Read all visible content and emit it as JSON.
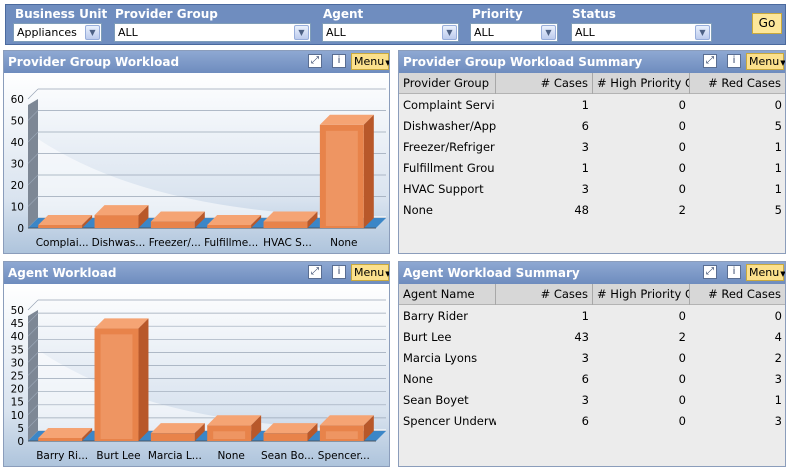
{
  "filters": {
    "business_unit": {
      "label": "Business Unit",
      "value": "Appliances"
    },
    "provider_group": {
      "label": "Provider Group",
      "value": "ALL"
    },
    "agent": {
      "label": "Agent",
      "value": "ALL"
    },
    "priority": {
      "label": "Priority",
      "value": "ALL"
    },
    "status": {
      "label": "Status",
      "value": "ALL"
    },
    "go_label": "Go"
  },
  "menu_label": "Menu",
  "icons": [
    "expand-icon",
    "info-icon"
  ],
  "colors": {
    "header": "#6f8dbf",
    "bar": "#e8834a",
    "menu": "#fbe08c",
    "go": "#fde79a"
  },
  "provider_chart": {
    "title": "Provider Group Workload",
    "chart_data": {
      "type": "bar",
      "categories": [
        "Complai...",
        "Dishwas...",
        "Freezer/...",
        "Fulfillme...",
        "HVAC S...",
        "None"
      ],
      "values": [
        1,
        6,
        3,
        1,
        3,
        48
      ],
      "ylim": [
        0,
        60
      ],
      "yticks": [
        0,
        10,
        20,
        30,
        40,
        50,
        60
      ],
      "grid": true
    }
  },
  "provider_table": {
    "title": "Provider Group Workload Summary",
    "columns": [
      "Provider Group",
      "# Cases",
      "# High Priority C",
      "# Red Cases"
    ],
    "rows": [
      [
        "Complaint Servi",
        "1",
        "0",
        "0"
      ],
      [
        "Dishwasher/App",
        "6",
        "0",
        "5"
      ],
      [
        "Freezer/Refriger",
        "3",
        "0",
        "1"
      ],
      [
        "Fulfillment Grou",
        "1",
        "0",
        "1"
      ],
      [
        "HVAC Support",
        "3",
        "0",
        "1"
      ],
      [
        "None",
        "48",
        "2",
        "5"
      ]
    ]
  },
  "agent_chart": {
    "title": "Agent Workload",
    "chart_data": {
      "type": "bar",
      "categories": [
        "Barry Ri...",
        "Burt Lee",
        "Marcia L...",
        "None",
        "Sean Bo...",
        "Spencer..."
      ],
      "values": [
        1,
        43,
        3,
        6,
        3,
        6
      ],
      "ylim": [
        0,
        50
      ],
      "yticks": [
        0,
        5,
        10,
        15,
        20,
        25,
        30,
        35,
        40,
        45,
        50
      ],
      "grid": true
    }
  },
  "agent_table": {
    "title": "Agent Workload Summary",
    "columns": [
      "Agent Name",
      "# Cases",
      "# High Priority C",
      "# Red Cases"
    ],
    "rows": [
      [
        "Barry Rider",
        "1",
        "0",
        "0"
      ],
      [
        "Burt Lee",
        "43",
        "2",
        "4"
      ],
      [
        "Marcia Lyons",
        "3",
        "0",
        "2"
      ],
      [
        "None",
        "6",
        "0",
        "3"
      ],
      [
        "Sean Boyet",
        "3",
        "0",
        "1"
      ],
      [
        "Spencer Underw",
        "6",
        "0",
        "3"
      ]
    ]
  }
}
